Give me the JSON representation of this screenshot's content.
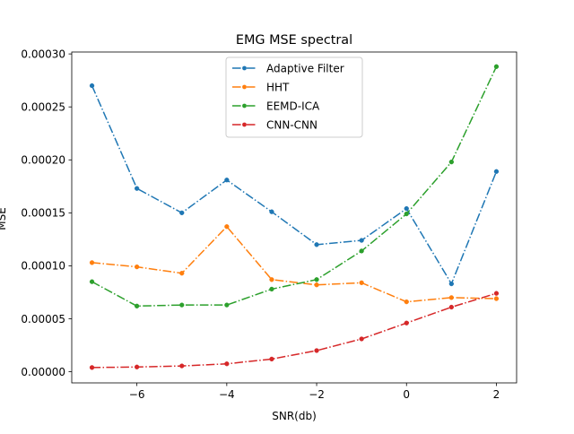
{
  "chart_data": {
    "type": "line",
    "title": "EMG MSE spectral",
    "xlabel": "SNR(db)",
    "ylabel": "MSE",
    "xlim": [
      -7.45,
      2.45
    ],
    "ylim": [
      -1.05e-05,
      0.0003018
    ],
    "x_ticks": [
      -6,
      -4,
      -2,
      0,
      2
    ],
    "x_tick_labels": [
      "−6",
      "−4",
      "−2",
      "0",
      "2"
    ],
    "y_ticks": [
      0.0,
      5e-05,
      0.0001,
      0.00015,
      0.0002,
      0.00025,
      0.0003
    ],
    "y_tick_labels": [
      "0.00000",
      "0.00005",
      "0.00010",
      "0.00015",
      "0.00020",
      "0.00025",
      "0.00030"
    ],
    "grid": false,
    "legend_position": "upper center",
    "x": [
      -7,
      -6,
      -5,
      -4,
      -3,
      -2,
      -1,
      0,
      1,
      2
    ],
    "series": [
      {
        "name": "Adaptive Filter",
        "color": "#1f77b4",
        "dash": "dashdot",
        "values": [
          0.00027,
          0.000173,
          0.00015,
          0.000181,
          0.000151,
          0.00012,
          0.000124,
          0.000154,
          8.3e-05,
          0.000189
        ]
      },
      {
        "name": "HHT",
        "color": "#ff7f0e",
        "dash": "dashdot",
        "values": [
          0.000103,
          9.9e-05,
          9.3e-05,
          0.000137,
          8.7e-05,
          8.2e-05,
          8.4e-05,
          6.6e-05,
          7e-05,
          6.9e-05
        ]
      },
      {
        "name": "EEMD-ICA",
        "color": "#2ca02c",
        "dash": "dashdot",
        "values": [
          8.5e-05,
          6.2e-05,
          6.3e-05,
          6.3e-05,
          7.8e-05,
          8.7e-05,
          0.000114,
          0.000149,
          0.000198,
          0.000288
        ]
      },
      {
        "name": "CNN-CNN",
        "color": "#d62728",
        "dash": "dashdot",
        "values": [
          4e-06,
          4.5e-06,
          5.5e-06,
          7.5e-06,
          1.2e-05,
          2e-05,
          3.1e-05,
          4.6e-05,
          6.1e-05,
          7.4e-05
        ]
      }
    ]
  }
}
